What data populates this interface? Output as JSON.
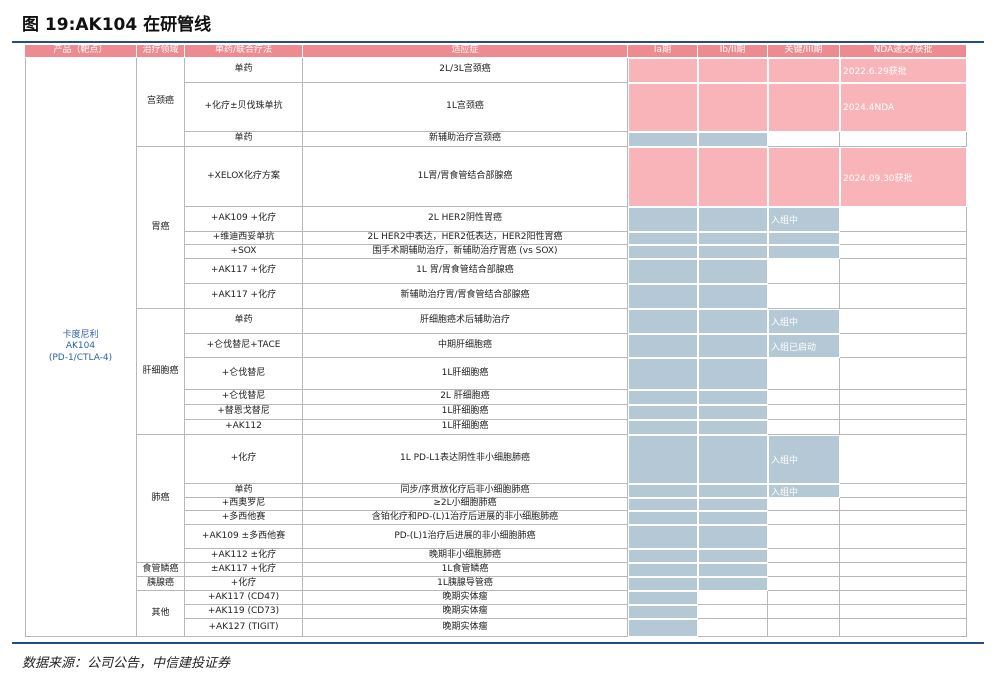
{
  "title": "图 19:AK104 在研管线",
  "table": {
    "header": [
      "产品（靶点）",
      "治疗领域",
      "单药/联合疗法",
      "适应症",
      "Ia期",
      "Ib/II期",
      "关键/III期",
      "NDA递交/获批"
    ],
    "product": [
      "卡度尼利",
      "AK104",
      "(PD-1/CTLA-4)"
    ],
    "groups": [
      {
        "area": "宫颈癌",
        "rows": [
          {
            "therapy": "单药",
            "indication": "2L/3L宫颈癌",
            "note": "2022.6.29获批"
          },
          {
            "therapy": "+化疗±贝伐珠单抗",
            "indication": "1L宫颈癌",
            "note": "2024.4NDA"
          },
          {
            "therapy": "单药",
            "indication": "新辅助治疗宫颈癌"
          }
        ]
      },
      {
        "area": "胃癌",
        "rows": [
          {
            "therapy": "+XELOX化疗方案",
            "indication": "1L胃/胃食管结合部腺癌",
            "note": "2024.09.30获批"
          },
          {
            "therapy": "+AK109 +化疗",
            "indication": "2L HER2阴性胃癌",
            "note": "入组中"
          },
          {
            "therapy": "+维迪西妥单抗",
            "indication": "2L HER2中表达，HER2低表达，HER2阳性胃癌"
          },
          {
            "therapy": "+SOX",
            "indication": "围手术期辅助治疗，新辅助治疗胃癌 (vs SOX)"
          },
          {
            "therapy": "+AK117 +化疗",
            "indication": "1L 胃/胃食管结合部腺癌"
          },
          {
            "therapy": "+AK117 +化疗",
            "indication": "新辅助治疗胃/胃食管结合部腺癌"
          }
        ]
      },
      {
        "area": "肝细胞癌",
        "rows": [
          {
            "therapy": "单药",
            "indication": "肝细胞癌术后辅助治疗",
            "note": "入组中"
          },
          {
            "therapy": "+仑伐替尼+TACE",
            "indication": "中期肝细胞癌",
            "note": "入组已启动"
          },
          {
            "therapy": "+仑伐替尼",
            "indication": "1L肝细胞癌"
          },
          {
            "therapy": "+仑伐替尼",
            "indication": "2L 肝细胞癌"
          },
          {
            "therapy": "+替恩戈替尼",
            "indication": "1L肝细胞癌"
          },
          {
            "therapy": "+AK112",
            "indication": "1L肝细胞癌"
          }
        ]
      },
      {
        "area": "肺癌",
        "rows": [
          {
            "therapy": "+化疗",
            "indication": "1L PD-L1表达阴性非小细胞肺癌",
            "note": "入组中"
          },
          {
            "therapy": "单药",
            "indication": "同步/序贯放化疗后非小细胞肺癌",
            "note": "入组中"
          },
          {
            "therapy": "+西奥罗尼",
            "indication": "≥2L小细胞肺癌"
          },
          {
            "therapy": "+多西他赛",
            "indication": "含铂化疗和PD-(L)1治疗后进展的非小细胞肺癌"
          },
          {
            "therapy": "+AK109 ±多西他赛",
            "indication": "PD-(L)1治疗后进展的非小细胞肺癌"
          },
          {
            "therapy": "+AK112 ±化疗",
            "indication": "晚期非小细胞肺癌"
          }
        ]
      },
      {
        "area": "食管鳞癌",
        "rows": [
          {
            "therapy": "±AK117 +化疗",
            "indication": "1L食管鳞癌"
          }
        ]
      },
      {
        "area": "胰腺癌",
        "rows": [
          {
            "therapy": "+化疗",
            "indication": "1L胰腺导管癌"
          }
        ]
      },
      {
        "area": "其他",
        "rows": [
          {
            "therapy": "+AK117 (CD47)",
            "indication": "晚期实体瘤"
          },
          {
            "therapy": "+AK119 (CD73)",
            "indication": "晚期实体瘤"
          },
          {
            "therapy": "+AK127 (TIGIT)",
            "indication": "晚期实体瘤"
          }
        ]
      }
    ]
  },
  "source": "数据来源：公司公告，中信建投证券"
}
